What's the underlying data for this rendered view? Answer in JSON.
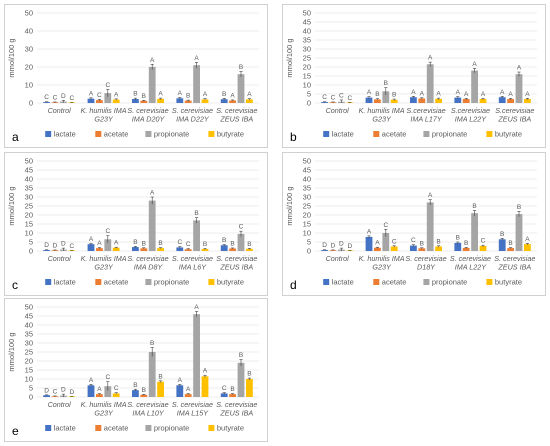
{
  "colors": {
    "lactate": "#4472c4",
    "acetate": "#ed7d31",
    "propionate": "#a5a5a5",
    "butyrate": "#ffc000",
    "grid": "#d9d9d9",
    "text": "#595959"
  },
  "chart_data": [
    {
      "panel": "a",
      "type": "bar",
      "ylabel": "mmol/100 g",
      "ylim": [
        0,
        50
      ],
      "yticks": [
        0,
        10,
        20,
        30,
        40,
        50
      ],
      "categories": [
        [
          "Control"
        ],
        [
          "K. humilis IMA",
          "G23Y"
        ],
        [
          "S. cerevisiae",
          "IMA D20Y"
        ],
        [
          "S. cerevisiae",
          "IMA D22Y"
        ],
        [
          "S. cerevisiae",
          "ZEUS IBA"
        ]
      ],
      "series": [
        {
          "name": "lactate",
          "values": [
            0.5,
            2.4,
            2.2,
            2.6,
            2.1
          ],
          "errors": [
            0.2,
            0.5,
            0.5,
            0.5,
            0.5
          ],
          "letters": [
            "C",
            "A",
            "B",
            "A",
            "B"
          ]
        },
        {
          "name": "acetate",
          "values": [
            0.4,
            1.6,
            1.2,
            1.3,
            1.4
          ],
          "errors": [
            0.2,
            0.4,
            0.3,
            0.3,
            0.3
          ],
          "letters": [
            "C",
            "C",
            "B",
            "B",
            "A"
          ]
        },
        {
          "name": "propionate",
          "values": [
            0.8,
            5.5,
            20.0,
            21.0,
            16.0
          ],
          "errors": [
            0.6,
            2.0,
            1.5,
            1.5,
            1.5
          ],
          "letters": [
            "D",
            "C",
            "A",
            "A",
            "B"
          ]
        },
        {
          "name": "butyrate",
          "values": [
            0.3,
            1.9,
            2.3,
            2.0,
            2.0
          ],
          "errors": [
            0.1,
            0.4,
            0.4,
            0.4,
            0.4
          ],
          "letters": [
            "C",
            "A",
            "A",
            "A",
            "A"
          ]
        }
      ]
    },
    {
      "panel": "b",
      "type": "bar",
      "ylabel": "mmol/100 g",
      "ylim": [
        0,
        50
      ],
      "yticks": [
        0,
        5,
        10,
        15,
        20,
        25,
        30,
        35,
        40,
        45,
        50
      ],
      "categories": [
        [
          "Control"
        ],
        [
          "K. humilis IMA",
          "G23Y"
        ],
        [
          "S.cerevisiae",
          "IMA L17Y"
        ],
        [
          "S.cerevisiae",
          "IMA L22Y"
        ],
        [
          "S.cerevisiae",
          "ZEUS IBA"
        ]
      ],
      "series": [
        {
          "name": "lactate",
          "values": [
            0.5,
            3.0,
            3.2,
            3.0,
            3.2
          ],
          "errors": [
            0.2,
            0.5,
            0.5,
            0.5,
            0.5
          ],
          "letters": [
            "C",
            "A",
            "A",
            "A",
            "A"
          ]
        },
        {
          "name": "acetate",
          "values": [
            0.4,
            2.0,
            2.5,
            2.2,
            2.2
          ],
          "errors": [
            0.2,
            0.4,
            0.4,
            0.4,
            0.4
          ],
          "letters": [
            "C",
            "B",
            "A",
            "A",
            "A"
          ]
        },
        {
          "name": "propionate",
          "values": [
            0.7,
            6.5,
            21.5,
            18.0,
            16.0
          ],
          "errors": [
            1.0,
            2.0,
            1.2,
            1.2,
            1.2
          ],
          "letters": [
            "C",
            "B",
            "A",
            "A",
            "A"
          ]
        },
        {
          "name": "butyrate",
          "values": [
            0.3,
            1.8,
            2.3,
            2.2,
            2.2
          ],
          "errors": [
            0.1,
            0.4,
            0.4,
            0.4,
            0.4
          ],
          "letters": [
            "C",
            "B",
            "A",
            "A",
            "A"
          ]
        }
      ]
    },
    {
      "panel": "c",
      "type": "bar",
      "ylabel": "mmol/100 g",
      "ylim": [
        0,
        50
      ],
      "yticks": [
        0,
        5,
        10,
        15,
        20,
        25,
        30,
        35,
        40,
        45,
        50
      ],
      "categories": [
        [
          "Control"
        ],
        [
          "K. humilis IMA",
          "G23Y"
        ],
        [
          "S. cerevisiae",
          "IMA D8Y"
        ],
        [
          "S. cerevisiae",
          "IMA L6Y"
        ],
        [
          "S. cerevisiae",
          "ZEUS IBA"
        ]
      ],
      "series": [
        {
          "name": "lactate",
          "values": [
            0.5,
            3.8,
            2.2,
            2.0,
            3.2
          ],
          "errors": [
            0.2,
            0.5,
            0.4,
            0.4,
            0.4
          ],
          "letters": [
            "D",
            "A",
            "B",
            "C",
            "B"
          ]
        },
        {
          "name": "acetate",
          "values": [
            0.4,
            1.6,
            1.5,
            1.0,
            1.4
          ],
          "errors": [
            0.2,
            0.3,
            0.3,
            0.3,
            0.3
          ],
          "letters": [
            "D",
            "A",
            "B",
            "C",
            "B"
          ]
        },
        {
          "name": "propionate",
          "values": [
            0.8,
            6.5,
            28.0,
            17.0,
            9.5
          ],
          "errors": [
            0.8,
            2.0,
            2.0,
            1.5,
            1.5
          ],
          "letters": [
            "D",
            "C",
            "A",
            "B",
            "C"
          ]
        },
        {
          "name": "butyrate",
          "values": [
            0.3,
            1.8,
            1.6,
            1.1,
            1.2
          ],
          "errors": [
            0.1,
            0.3,
            0.3,
            0.3,
            0.3
          ],
          "letters": [
            "C",
            "A",
            "B",
            "B",
            "B"
          ]
        }
      ]
    },
    {
      "panel": "d",
      "type": "bar",
      "ylabel": "mmol/100 g",
      "ylim": [
        0,
        50
      ],
      "yticks": [
        0,
        5,
        10,
        15,
        20,
        25,
        30,
        35,
        40,
        45,
        50
      ],
      "categories": [
        [
          "Control"
        ],
        [
          "K. humilis IMA",
          "G23Y"
        ],
        [
          "S. cerevisiae",
          "D18Y"
        ],
        [
          "S. cerevisiae",
          "IMA L22Y"
        ],
        [
          "S. cerevisiae",
          "ZEUS IBA"
        ]
      ],
      "series": [
        {
          "name": "lactate",
          "values": [
            0.5,
            7.8,
            3.0,
            4.5,
            6.5
          ],
          "errors": [
            0.2,
            0.6,
            0.5,
            0.5,
            0.5
          ],
          "letters": [
            "D",
            "A",
            "C",
            "B",
            "B"
          ]
        },
        {
          "name": "acetate",
          "values": [
            0.4,
            1.8,
            1.5,
            1.7,
            1.6
          ],
          "errors": [
            0.2,
            0.3,
            0.3,
            0.3,
            0.3
          ],
          "letters": [
            "D",
            "A",
            "B",
            "B",
            "B"
          ]
        },
        {
          "name": "propionate",
          "values": [
            0.8,
            10.0,
            27.0,
            21.0,
            20.5
          ],
          "errors": [
            0.8,
            2.0,
            1.5,
            1.5,
            1.5
          ],
          "letters": [
            "D",
            "C",
            "A",
            "B",
            "B"
          ]
        },
        {
          "name": "butyrate",
          "values": [
            0.3,
            2.5,
            2.5,
            2.8,
            3.8
          ],
          "errors": [
            0.1,
            0.4,
            0.4,
            0.4,
            0.4
          ],
          "letters": [
            "D",
            "C",
            "B",
            "C",
            "A"
          ]
        }
      ]
    },
    {
      "panel": "e",
      "type": "bar",
      "ylabel": "mmol/100 g",
      "ylim": [
        0,
        50
      ],
      "yticks": [
        0,
        5,
        10,
        15,
        20,
        25,
        30,
        35,
        40,
        45,
        50
      ],
      "categories": [
        [
          "Control"
        ],
        [
          "K. humilis IMA",
          "G23Y"
        ],
        [
          "S. cerevisiae",
          "IMA L10Y"
        ],
        [
          "S. cerevisiae",
          "IMA L15Y"
        ],
        [
          "S. cerevisiae",
          "ZEUS IBA"
        ]
      ],
      "series": [
        {
          "name": "lactate",
          "values": [
            1.0,
            6.5,
            3.8,
            6.5,
            2.0
          ],
          "errors": [
            0.2,
            0.5,
            0.5,
            0.5,
            0.5
          ],
          "letters": [
            "D",
            "A",
            "B",
            "A",
            "C"
          ]
        },
        {
          "name": "acetate",
          "values": [
            0.4,
            1.6,
            1.2,
            1.6,
            1.6
          ],
          "errors": [
            0.2,
            0.3,
            0.3,
            0.3,
            0.3
          ],
          "letters": [
            "C",
            "A",
            "B",
            "A",
            "B"
          ]
        },
        {
          "name": "propionate",
          "values": [
            0.8,
            6.0,
            25.0,
            46.0,
            19.0
          ],
          "errors": [
            0.8,
            2.5,
            2.5,
            1.5,
            1.8
          ],
          "letters": [
            "D",
            "C",
            "B",
            "A",
            "B"
          ]
        },
        {
          "name": "butyrate",
          "values": [
            0.3,
            2.0,
            8.5,
            11.5,
            10.0
          ],
          "errors": [
            0.1,
            0.4,
            0.5,
            0.6,
            0.5
          ],
          "letters": [
            "D",
            "C",
            "B",
            "A",
            "B"
          ]
        }
      ]
    }
  ]
}
